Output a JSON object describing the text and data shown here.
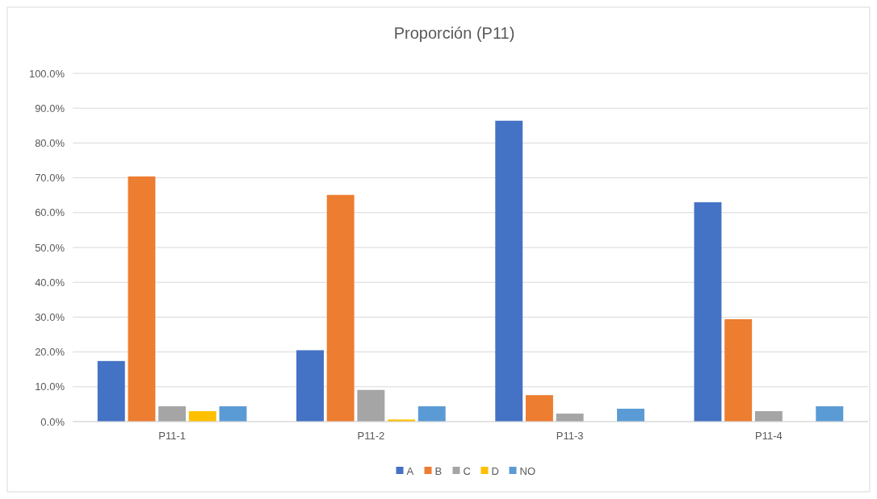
{
  "chart_data": {
    "type": "bar",
    "title": "Proporción (P11)",
    "categories": [
      "P11-1",
      "P11-2",
      "P11-3",
      "P11-4"
    ],
    "series": [
      {
        "name": "A",
        "color": "#4472c4",
        "values": [
          17.4,
          20.5,
          86.4,
          63.0
        ]
      },
      {
        "name": "B",
        "color": "#ed7d31",
        "values": [
          70.4,
          65.1,
          7.6,
          29.4
        ]
      },
      {
        "name": "C",
        "color": "#a5a5a5",
        "values": [
          4.4,
          9.1,
          2.3,
          3.0
        ]
      },
      {
        "name": "D",
        "color": "#ffc000",
        "values": [
          3.0,
          0.6,
          0,
          0
        ]
      },
      {
        "name": "NO",
        "color": "#5b9bd5",
        "values": [
          4.4,
          4.4,
          3.7,
          4.4
        ]
      }
    ],
    "ylim": [
      0,
      100
    ],
    "yticks": [
      {
        "value": 0,
        "label": "0.0%"
      },
      {
        "value": 10,
        "label": "10.0%"
      },
      {
        "value": 20,
        "label": "20.0%"
      },
      {
        "value": 30,
        "label": "30.0%"
      },
      {
        "value": 40,
        "label": "40.0%"
      },
      {
        "value": 50,
        "label": "50.0%"
      },
      {
        "value": 60,
        "label": "60.0%"
      },
      {
        "value": 70,
        "label": "70.0%"
      },
      {
        "value": 80,
        "label": "80.0%"
      },
      {
        "value": 90,
        "label": "90.0%"
      },
      {
        "value": 100,
        "label": "100.0%"
      }
    ],
    "grid": "y",
    "legend": "bottom"
  }
}
